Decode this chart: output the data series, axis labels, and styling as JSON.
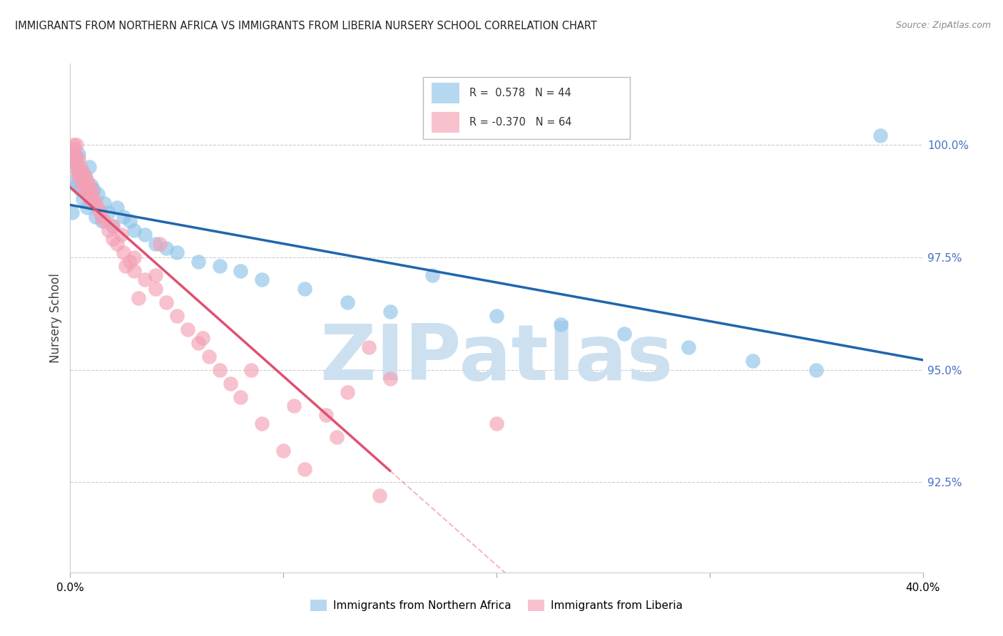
{
  "title": "IMMIGRANTS FROM NORTHERN AFRICA VS IMMIGRANTS FROM LIBERIA NURSERY SCHOOL CORRELATION CHART",
  "source": "Source: ZipAtlas.com",
  "ylabel": "Nursery School",
  "yticks": [
    92.5,
    95.0,
    97.5,
    100.0
  ],
  "ytick_labels": [
    "92.5%",
    "95.0%",
    "97.5%",
    "100.0%"
  ],
  "xlim": [
    0.0,
    40.0
  ],
  "ylim": [
    90.5,
    101.8
  ],
  "color_blue": "#8ec4e8",
  "color_pink": "#f4a0b5",
  "color_trend_blue": "#2166ac",
  "color_trend_pink": "#e05070",
  "watermark": "ZIPatlas",
  "watermark_color": "#cce0f0",
  "blue_x": [
    0.1,
    0.2,
    0.2,
    0.3,
    0.3,
    0.4,
    0.4,
    0.5,
    0.6,
    0.7,
    0.8,
    0.9,
    1.0,
    1.0,
    1.1,
    1.2,
    1.3,
    1.5,
    1.6,
    1.8,
    2.0,
    2.2,
    2.5,
    2.8,
    3.0,
    3.5,
    4.0,
    4.5,
    5.0,
    6.0,
    7.0,
    8.0,
    9.0,
    11.0,
    13.0,
    15.0,
    17.0,
    20.0,
    23.0,
    26.0,
    29.0,
    32.0,
    35.0,
    38.0
  ],
  "blue_y": [
    98.5,
    99.6,
    99.2,
    99.7,
    99.1,
    99.4,
    99.8,
    99.0,
    98.8,
    99.3,
    98.6,
    99.5,
    98.7,
    99.1,
    99.0,
    98.4,
    98.9,
    98.3,
    98.7,
    98.5,
    98.2,
    98.6,
    98.4,
    98.3,
    98.1,
    98.0,
    97.8,
    97.7,
    97.6,
    97.4,
    97.3,
    97.2,
    97.0,
    96.8,
    96.5,
    96.3,
    97.1,
    96.2,
    96.0,
    95.8,
    95.5,
    95.2,
    95.0,
    100.2
  ],
  "pink_x": [
    0.1,
    0.15,
    0.2,
    0.2,
    0.25,
    0.3,
    0.3,
    0.35,
    0.4,
    0.4,
    0.5,
    0.5,
    0.6,
    0.6,
    0.7,
    0.7,
    0.8,
    0.8,
    0.9,
    0.9,
    1.0,
    1.0,
    1.1,
    1.2,
    1.3,
    1.4,
    1.5,
    1.6,
    1.8,
    2.0,
    2.0,
    2.2,
    2.5,
    2.8,
    3.0,
    3.0,
    3.5,
    4.0,
    4.0,
    4.5,
    5.0,
    5.5,
    6.0,
    6.5,
    7.0,
    7.5,
    8.0,
    9.0,
    10.0,
    11.0,
    12.0,
    13.0,
    14.0,
    15.0,
    2.4,
    2.6,
    3.2,
    4.2,
    6.2,
    8.5,
    10.5,
    12.5,
    14.5,
    20.0
  ],
  "pink_y": [
    99.8,
    100.0,
    99.9,
    99.5,
    99.75,
    99.6,
    100.0,
    99.4,
    99.7,
    99.3,
    99.5,
    99.2,
    99.4,
    99.1,
    99.3,
    99.0,
    99.2,
    98.9,
    99.1,
    98.8,
    98.9,
    99.0,
    98.8,
    98.7,
    98.6,
    98.5,
    98.4,
    98.3,
    98.1,
    97.9,
    98.2,
    97.8,
    97.6,
    97.4,
    97.5,
    97.2,
    97.0,
    96.8,
    97.1,
    96.5,
    96.2,
    95.9,
    95.6,
    95.3,
    95.0,
    94.7,
    94.4,
    93.8,
    93.2,
    92.8,
    94.0,
    94.5,
    95.5,
    94.8,
    98.0,
    97.3,
    96.6,
    97.8,
    95.7,
    95.0,
    94.2,
    93.5,
    92.2,
    93.8
  ],
  "blue_trend_x0": 0.0,
  "blue_trend_x1": 40.0,
  "pink_solid_x0": 0.0,
  "pink_solid_x1": 15.0,
  "pink_dashed_x0": 15.0,
  "pink_dashed_x1": 40.0
}
